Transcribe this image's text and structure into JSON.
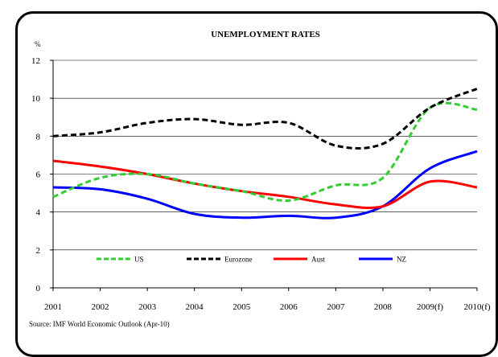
{
  "chart_data": {
    "type": "line",
    "title": "UNEMPLOYMENT RATES",
    "ylabel": "%",
    "ylim": [
      0,
      12
    ],
    "yticks": [
      0,
      2,
      4,
      6,
      8,
      10,
      12
    ],
    "categories": [
      "2001",
      "2002",
      "2003",
      "2004",
      "2005",
      "2006",
      "2007",
      "2008",
      "2009(f)",
      "2010(f)"
    ],
    "grid": true,
    "legend_position": "bottom-inside",
    "series": [
      {
        "name": "US",
        "color": "#33cc33",
        "dash": "dashed",
        "values": [
          4.8,
          5.8,
          6.0,
          5.5,
          5.1,
          4.6,
          5.4,
          5.8,
          9.5,
          9.4
        ]
      },
      {
        "name": "Eurozone",
        "color": "#000000",
        "dash": "dashed",
        "values": [
          8.0,
          8.2,
          8.7,
          8.9,
          8.6,
          8.7,
          7.5,
          7.6,
          9.5,
          10.5
        ]
      },
      {
        "name": "Aust",
        "color": "#ff0000",
        "dash": "solid",
        "values": [
          6.7,
          6.4,
          6.0,
          5.5,
          5.1,
          4.8,
          4.4,
          4.3,
          5.6,
          5.3
        ]
      },
      {
        "name": "NZ",
        "color": "#0000ff",
        "dash": "solid",
        "values": [
          5.3,
          5.2,
          4.7,
          3.9,
          3.7,
          3.8,
          3.7,
          4.3,
          6.3,
          7.2
        ]
      }
    ]
  },
  "source_note": "Source: IMF World Economic Outlook (Apr-10)"
}
